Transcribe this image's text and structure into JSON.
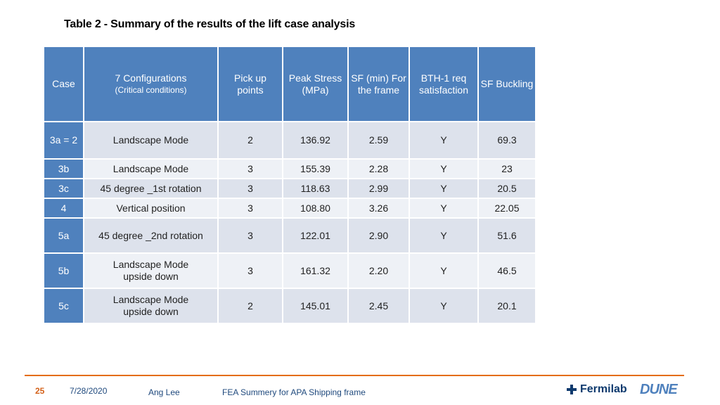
{
  "title": "Table 2 - Summary of the results of the lift case analysis",
  "table": {
    "headers": {
      "case": "Case",
      "config": "7 Configurations",
      "config_sub": "(Critical conditions)",
      "pickup": [
        "Pick up",
        "points"
      ],
      "stress": [
        "Peak",
        "Stress",
        "(MPa)"
      ],
      "sf_min": [
        "SF (min)",
        "For the",
        "frame"
      ],
      "bth": [
        "BTH-1 req",
        "satisfaction"
      ],
      "buckling": [
        "SF",
        "Buckling"
      ]
    },
    "rows": [
      {
        "case": "3a = 2",
        "config": [
          "Landscape Mode"
        ],
        "pickup": "2",
        "stress": "136.92",
        "sf": "2.59",
        "bth": "Y",
        "buckling": "69.3"
      },
      {
        "case": "3b",
        "config": [
          "Landscape Mode"
        ],
        "pickup": "3",
        "stress": "155.39",
        "sf": "2.28",
        "bth": "Y",
        "buckling": "23"
      },
      {
        "case": "3c",
        "config": [
          "45 degree _1st rotation"
        ],
        "pickup": "3",
        "stress": "118.63",
        "sf": "2.99",
        "bth": "Y",
        "buckling": "20.5"
      },
      {
        "case": "4",
        "config": [
          "Vertical position"
        ],
        "pickup": "3",
        "stress": "108.80",
        "sf": "3.26",
        "bth": "Y",
        "buckling": "22.05"
      },
      {
        "case": "5a",
        "config": [
          "45 degree _2nd rotation"
        ],
        "pickup": "3",
        "stress": "122.01",
        "sf": "2.90",
        "bth": "Y",
        "buckling": "51.6"
      },
      {
        "case": "5b",
        "config": [
          "Landscape Mode",
          "upside down"
        ],
        "pickup": "3",
        "stress": "161.32",
        "sf": "2.20",
        "bth": "Y",
        "buckling": "46.5"
      },
      {
        "case": "5c",
        "config": [
          "Landscape Mode",
          "upside down"
        ],
        "pickup": "2",
        "stress": "145.01",
        "sf": "2.45",
        "bth": "Y",
        "buckling": "20.1"
      }
    ]
  },
  "footer": {
    "page_number": "25",
    "date": "7/28/2020",
    "author": "Ang Lee",
    "subject": "FEA Summery for APA Shipping frame",
    "logo_fermilab": "Fermilab",
    "logo_dune": "DUNE"
  },
  "colors": {
    "header_blue": "#4f81bd",
    "row_light": "#dde2ec",
    "row_lighter": "#eef1f6",
    "footer_rule": "#e46c0a"
  }
}
